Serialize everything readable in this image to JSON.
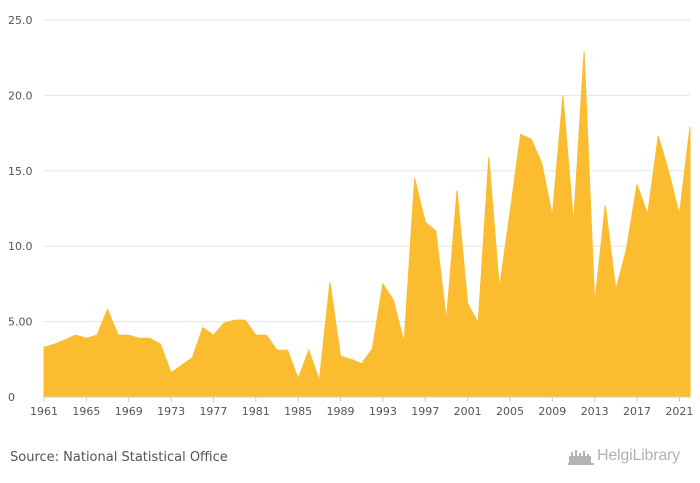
{
  "chart_data": {
    "type": "area",
    "color": "#fbbd2f",
    "grid": true,
    "ylim": [
      0,
      25
    ],
    "yticks": [
      0,
      5,
      10,
      15,
      20,
      25
    ],
    "ytick_labels": [
      "0",
      "5.00",
      "10.0",
      "15.0",
      "20.0",
      "25.0"
    ],
    "xlim": [
      1961,
      2022
    ],
    "xticks": [
      1961,
      1965,
      1969,
      1973,
      1977,
      1981,
      1985,
      1989,
      1993,
      1997,
      2001,
      2005,
      2009,
      2013,
      2017,
      2021
    ],
    "x": [
      1961,
      1962,
      1963,
      1964,
      1965,
      1966,
      1967,
      1968,
      1969,
      1970,
      1971,
      1972,
      1973,
      1974,
      1975,
      1976,
      1977,
      1978,
      1979,
      1980,
      1981,
      1982,
      1983,
      1984,
      1985,
      1986,
      1987,
      1988,
      1989,
      1990,
      1991,
      1992,
      1993,
      1994,
      1995,
      1996,
      1997,
      1998,
      1999,
      2000,
      2001,
      2002,
      2003,
      2004,
      2005,
      2006,
      2007,
      2008,
      2009,
      2010,
      2011,
      2012,
      2013,
      2014,
      2015,
      2016,
      2017,
      2018,
      2019,
      2020,
      2021,
      2022
    ],
    "values": [
      3.3,
      3.5,
      3.8,
      4.1,
      3.9,
      4.1,
      5.8,
      4.1,
      4.1,
      3.9,
      3.9,
      3.5,
      1.6,
      2.1,
      2.6,
      4.6,
      4.1,
      4.9,
      5.1,
      5.1,
      4.1,
      4.1,
      3.1,
      3.1,
      1.2,
      3.1,
      1.1,
      7.6,
      2.7,
      2.5,
      2.2,
      3.2,
      7.5,
      6.4,
      3.6,
      14.5,
      11.6,
      11.0,
      5.1,
      13.7,
      6.2,
      4.9,
      15.9,
      7.2,
      12.2,
      17.4,
      17.1,
      15.5,
      12.0,
      20.0,
      11.5,
      22.9,
      6.2,
      12.7,
      7.1,
      9.8,
      14.1,
      12.1,
      17.3,
      14.9,
      12.1,
      17.9
    ]
  },
  "source_text": "Source: National Statistical Office",
  "logo": {
    "icon": "helgi-library-skyline-icon",
    "text": "HelgiLibrary"
  }
}
